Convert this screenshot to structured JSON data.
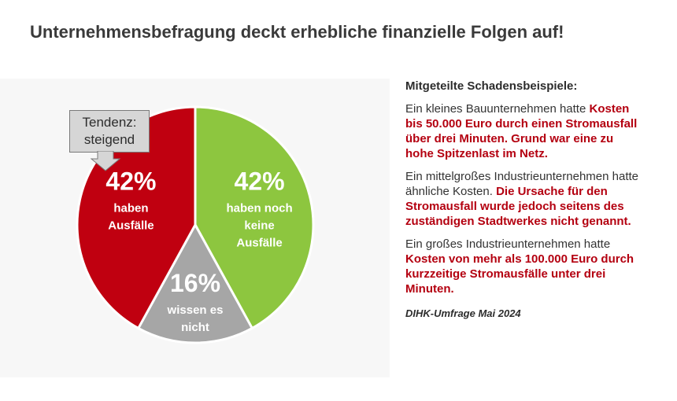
{
  "header": {
    "title": "Unternehmensbefragung deckt erhebliche finanzielle Folgen auf!"
  },
  "chart_data": {
    "type": "pie",
    "title": "",
    "slices": [
      {
        "name": "haben noch keine Ausfälle",
        "value": 42,
        "pct_label": "42%",
        "text_lines": [
          "haben noch",
          "keine",
          "Ausfälle"
        ],
        "color": "#8dc63f"
      },
      {
        "name": "wissen es nicht",
        "value": 16,
        "pct_label": "16%",
        "text_lines": [
          "wissen es",
          "nicht"
        ],
        "color": "#a6a6a6"
      },
      {
        "name": "haben Ausfälle",
        "value": 42,
        "pct_label": "42%",
        "text_lines": [
          "haben",
          "Ausfälle"
        ],
        "color": "#c00010"
      }
    ],
    "annotations": [
      {
        "text_lines": [
          "Tendenz:",
          "steigend"
        ],
        "target": "haben Ausfälle"
      }
    ]
  },
  "callout": {
    "line1": "Tendenz:",
    "line2": "steigend"
  },
  "examples": {
    "heading": "Mitgeteilte Schadensbeispiele:",
    "items": [
      {
        "plain": "Ein kleines Bauunternehmen hatte ",
        "highlight": "Kosten bis 50.000 Euro durch einen Stromausfall über drei Minuten. Grund war eine zu hohe Spitzenlast im Netz."
      },
      {
        "plain": "Ein mittelgroßes Industrieunternehmen hatte ähnliche Kosten. ",
        "highlight": "Die Ursache für den Stromausfall wurde jedoch seitens des zuständigen Stadtwerkes nicht genannt."
      },
      {
        "plain": "Ein großes Industrieunternehmen hatte ",
        "highlight": "Kosten von mehr als 100.000 Euro durch kurzzeitige Stromausfälle unter drei Minuten."
      }
    ],
    "source": "DIHK-Umfrage Mai 2024"
  },
  "colors": {
    "accent_red": "#b40010",
    "green": "#8dc63f",
    "grey": "#a6a6a6"
  }
}
